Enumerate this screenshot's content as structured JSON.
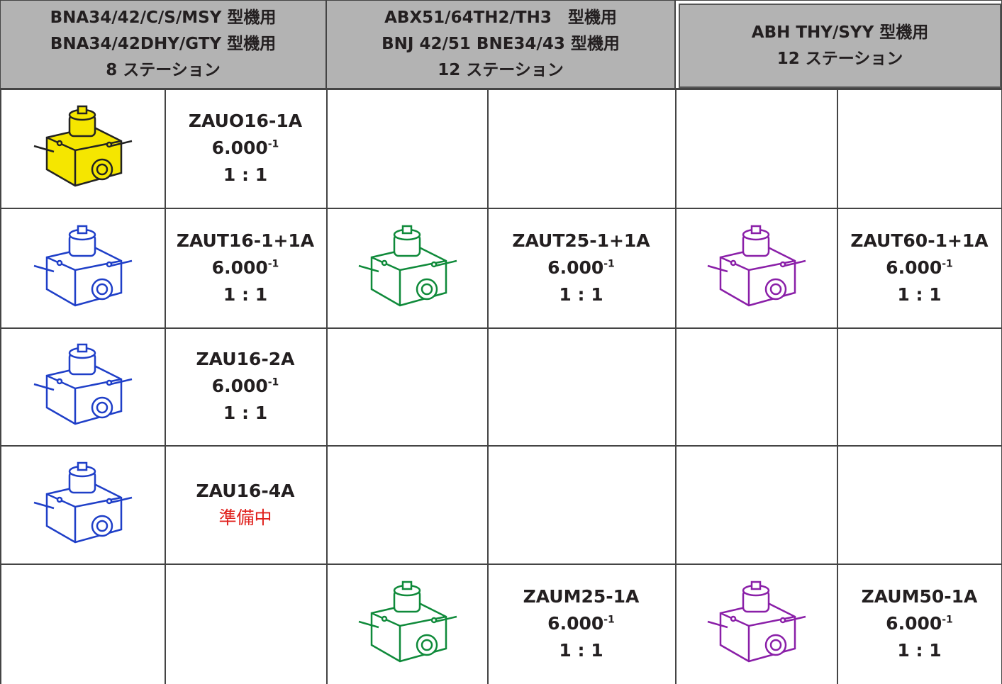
{
  "header": {
    "columns": [
      {
        "lines": [
          "BNA34/42/C/S/MSY 型機用",
          "BNA34/42DHY/GTY 型機用",
          "8 ステーション"
        ]
      },
      {
        "lines": [
          "ABX51/64TH2/TH3　型機用",
          "BNJ 42/51 BNE34/43 型機用",
          "12 ステーション"
        ]
      },
      {
        "lines": [
          "ABH THY/SYY 型機用",
          "12 ステーション"
        ]
      }
    ]
  },
  "table": {
    "rows": [
      [
        {
          "name": "ZAUO16-1A",
          "speed": "6.000",
          "speed_exp": "-1",
          "ratio": "1 : 1",
          "color": "#f5e600"
        },
        null,
        null
      ],
      [
        {
          "name": "ZAUT16-1+1A",
          "speed": "6.000",
          "speed_exp": "-1",
          "ratio": "1 : 1",
          "color": "#1f3fc8"
        },
        {
          "name": "ZAUT25-1+1A",
          "speed": "6.000",
          "speed_exp": "-1",
          "ratio": "1 : 1",
          "color": "#0f8a3a"
        },
        {
          "name": "ZAUT60-1+1A",
          "speed": "6.000",
          "speed_exp": "-1",
          "ratio": "1 : 1",
          "color": "#8a1fa8"
        }
      ],
      [
        {
          "name": "ZAU16-2A",
          "speed": "6.000",
          "speed_exp": "-1",
          "ratio": "1 : 1",
          "color": "#1f3fc8"
        },
        null,
        null
      ],
      [
        {
          "name": "ZAU16-4A",
          "status": "準備中",
          "color": "#1f3fc8"
        },
        null,
        null
      ],
      [
        null,
        {
          "name": "ZAUM25-1A",
          "speed": "6.000",
          "speed_exp": "-1",
          "ratio": "1 : 1",
          "color": "#0f8a3a"
        },
        {
          "name": "ZAUM50-1A",
          "speed": "6.000",
          "speed_exp": "-1",
          "ratio": "1 : 1",
          "color": "#8a1fa8"
        }
      ]
    ]
  }
}
